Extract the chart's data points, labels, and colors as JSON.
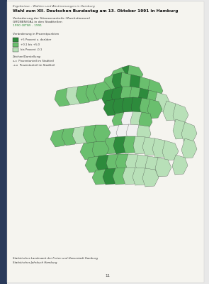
{
  "page_bg": "#e8e8e8",
  "book_bg": "#f5f4ef",
  "title_line1": "Ergebnisse - Wahlen und Abstimmungen in Hamburg",
  "title_line2": "Wahl zum XII. Deutschen Bundestag am 13. Oktober 1991 in Hamburg",
  "subtitle_line1": "Veränderung der Stimmenanteile (Zweitstimmen)",
  "subtitle_line2_gray": "GRÜNEN/GAL in den Stadtteilen",
  "subtitle_green": "GRÜNEN/GAL",
  "subtitle_line3": "1990 (BTW) - 1991",
  "legend_title": "Veränderung in Prozentpunkten",
  "legend_items": [
    {
      "color": "#2d8b3c",
      "label": "+5 Prozent u. darüber"
    },
    {
      "color": "#6abf6e",
      "label": "+0,1 bis +5,0"
    },
    {
      "color": "#b8e0b8",
      "label": "bis Prozent -0,1"
    }
  ],
  "symbol_title": "Zeichen/Darstellung:",
  "symbol_items": [
    "x,x  Prozentanteil im Stadtteil",
    "-x,x  Prozentanteil im Stadtteil"
  ],
  "footer_line1": "Statistisches Landesamt der Freien und Hansestadt Hamburg",
  "footer_line2": "Statistisches Jahrbuch Hamburg",
  "page_number": "11",
  "colors": {
    "dark_green": "#2d8b3c",
    "mid_green": "#6abf6e",
    "light_green": "#b8e0b8",
    "white_area": "#f0f0f0"
  }
}
